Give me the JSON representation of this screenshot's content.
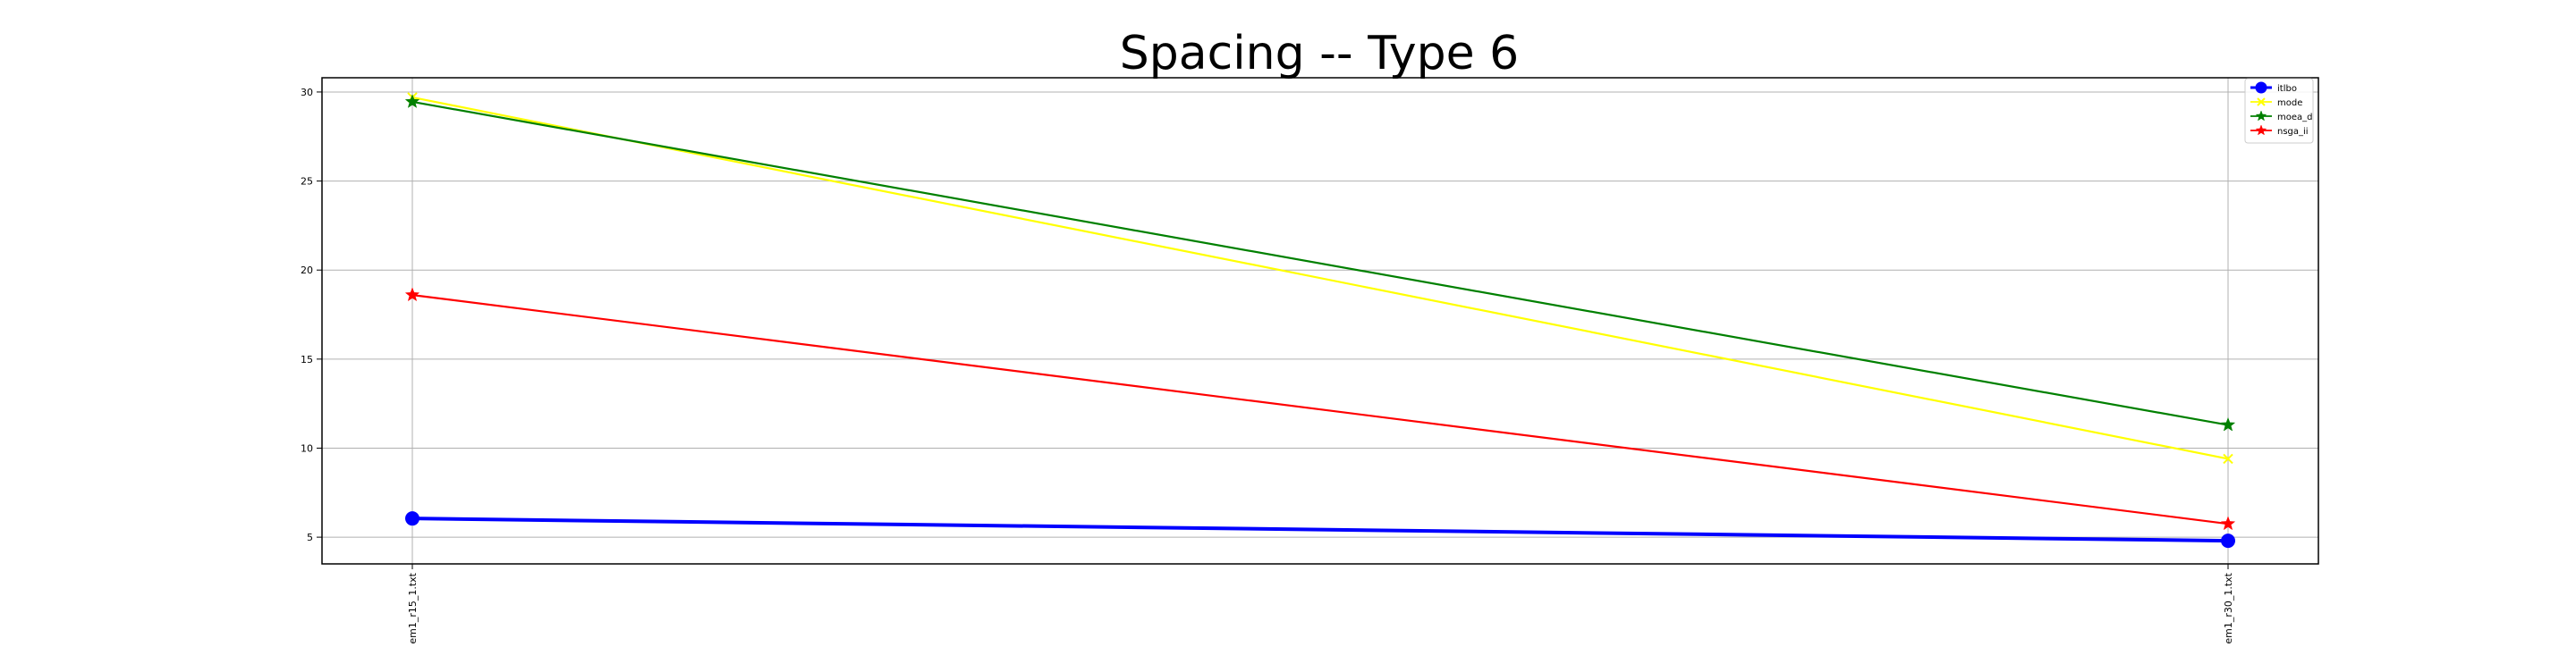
{
  "chart_data": {
    "type": "line",
    "title": "Spacing -- Type 6",
    "xlabel": "",
    "ylabel": "",
    "categories": [
      "dem1_r15_1.txt",
      "dem1_r30_1.txt"
    ],
    "ylim": [
      3.5,
      30.8
    ],
    "yticks": [
      5,
      10,
      15,
      20,
      25,
      30
    ],
    "grid": true,
    "legend_position": "top-right",
    "series": [
      {
        "name": "itlbo",
        "values": [
          6.05,
          4.8
        ],
        "color": "#0000ff",
        "marker": "circle",
        "line_width": "thick"
      },
      {
        "name": "mode",
        "values": [
          29.7,
          9.4
        ],
        "color": "#ffff00",
        "marker": "x",
        "line_width": "thin"
      },
      {
        "name": "moea_d",
        "values": [
          29.45,
          11.3
        ],
        "color": "#008000",
        "marker": "star",
        "line_width": "thin"
      },
      {
        "name": "nsga_ii",
        "values": [
          18.6,
          5.75
        ],
        "color": "#ff0000",
        "marker": "star",
        "line_width": "thin"
      }
    ]
  }
}
